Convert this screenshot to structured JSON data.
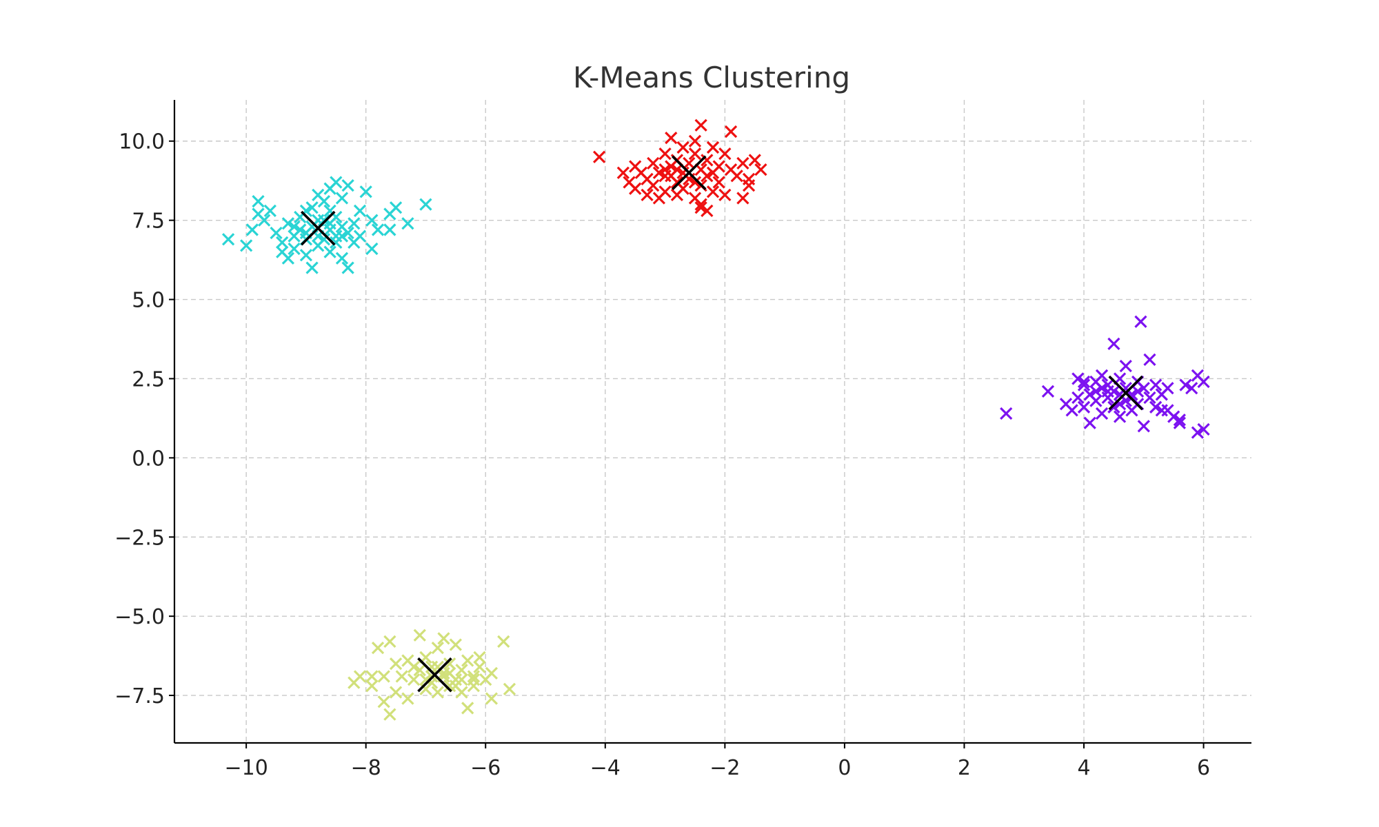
{
  "chart_data": {
    "type": "scatter",
    "title": "K-Means Clustering",
    "xlabel": "",
    "ylabel": "",
    "xlim": [
      -11.2,
      6.8
    ],
    "ylim": [
      -9.0,
      11.3
    ],
    "xticks": [
      -10,
      -8,
      -6,
      -4,
      -2,
      0,
      2,
      4,
      6
    ],
    "xtick_labels": [
      "−10",
      "−8",
      "−6",
      "−4",
      "−2",
      "0",
      "2",
      "4",
      "6"
    ],
    "yticks": [
      -7.5,
      -5.0,
      -2.5,
      0.0,
      2.5,
      5.0,
      7.5,
      10.0
    ],
    "ytick_labels": [
      "−7.5",
      "−5.0",
      "−2.5",
      "0.0",
      "2.5",
      "5.0",
      "7.5",
      "10.0"
    ],
    "grid": true,
    "marker": "x",
    "series": [
      {
        "color": "#2ad4d4",
        "points": [
          [
            -10.3,
            6.9
          ],
          [
            -10.0,
            6.7
          ],
          [
            -9.9,
            7.2
          ],
          [
            -9.8,
            7.7
          ],
          [
            -9.8,
            8.1
          ],
          [
            -9.7,
            7.5
          ],
          [
            -9.6,
            7.8
          ],
          [
            -9.5,
            7.1
          ],
          [
            -9.4,
            6.8
          ],
          [
            -9.4,
            6.5
          ],
          [
            -9.3,
            7.4
          ],
          [
            -9.3,
            6.3
          ],
          [
            -9.2,
            7.0
          ],
          [
            -9.2,
            6.6
          ],
          [
            -9.1,
            7.6
          ],
          [
            -9.1,
            7.2
          ],
          [
            -9.0,
            6.9
          ],
          [
            -9.0,
            7.8
          ],
          [
            -9.0,
            6.4
          ],
          [
            -8.9,
            7.3
          ],
          [
            -8.9,
            6.0
          ],
          [
            -8.9,
            7.9
          ],
          [
            -8.8,
            7.0
          ],
          [
            -8.8,
            8.3
          ],
          [
            -8.8,
            6.7
          ],
          [
            -8.7,
            7.5
          ],
          [
            -8.7,
            6.9
          ],
          [
            -8.7,
            8.1
          ],
          [
            -8.6,
            7.2
          ],
          [
            -8.6,
            6.5
          ],
          [
            -8.6,
            7.8
          ],
          [
            -8.6,
            8.5
          ],
          [
            -8.5,
            7.0
          ],
          [
            -8.5,
            6.8
          ],
          [
            -8.5,
            7.6
          ],
          [
            -8.5,
            8.7
          ],
          [
            -8.4,
            7.3
          ],
          [
            -8.4,
            6.3
          ],
          [
            -8.4,
            8.2
          ],
          [
            -8.3,
            7.1
          ],
          [
            -8.3,
            6.0
          ],
          [
            -8.3,
            8.6
          ],
          [
            -8.2,
            7.4
          ],
          [
            -8.2,
            6.8
          ],
          [
            -8.1,
            7.8
          ],
          [
            -8.1,
            7.0
          ],
          [
            -8.0,
            8.4
          ],
          [
            -7.9,
            7.5
          ],
          [
            -7.9,
            6.6
          ],
          [
            -7.8,
            7.2
          ],
          [
            -7.6,
            7.7
          ],
          [
            -7.5,
            7.9
          ],
          [
            -7.3,
            7.4
          ],
          [
            -7.0,
            8.0
          ],
          [
            -7.6,
            7.2
          ],
          [
            -8.8,
            7.5
          ],
          [
            -9.0,
            7.1
          ],
          [
            -8.6,
            7.4
          ],
          [
            -8.4,
            7.0
          ],
          [
            -9.2,
            7.3
          ]
        ]
      },
      {
        "color": "#ee1111",
        "points": [
          [
            -4.1,
            9.5
          ],
          [
            -3.7,
            9.0
          ],
          [
            -3.6,
            8.7
          ],
          [
            -3.5,
            9.2
          ],
          [
            -3.5,
            8.5
          ],
          [
            -3.4,
            9.0
          ],
          [
            -3.3,
            8.3
          ],
          [
            -3.3,
            8.8
          ],
          [
            -3.2,
            9.3
          ],
          [
            -3.2,
            8.6
          ],
          [
            -3.1,
            9.0
          ],
          [
            -3.1,
            8.2
          ],
          [
            -3.0,
            9.6
          ],
          [
            -3.0,
            8.9
          ],
          [
            -3.0,
            8.4
          ],
          [
            -2.9,
            9.2
          ],
          [
            -2.9,
            10.1
          ],
          [
            -2.8,
            8.7
          ],
          [
            -2.8,
            9.4
          ],
          [
            -2.8,
            8.3
          ],
          [
            -2.7,
            9.0
          ],
          [
            -2.7,
            9.8
          ],
          [
            -2.7,
            8.5
          ],
          [
            -2.6,
            9.3
          ],
          [
            -2.6,
            8.8
          ],
          [
            -2.5,
            10.0
          ],
          [
            -2.5,
            8.2
          ],
          [
            -2.5,
            9.6
          ],
          [
            -2.4,
            8.6
          ],
          [
            -2.4,
            9.1
          ],
          [
            -2.4,
            7.9
          ],
          [
            -2.4,
            10.5
          ],
          [
            -2.3,
            8.9
          ],
          [
            -2.3,
            9.4
          ],
          [
            -2.3,
            7.8
          ],
          [
            -2.2,
            9.8
          ],
          [
            -2.2,
            8.4
          ],
          [
            -2.1,
            9.2
          ],
          [
            -2.1,
            8.7
          ],
          [
            -2.0,
            9.6
          ],
          [
            -2.0,
            8.3
          ],
          [
            -1.9,
            9.1
          ],
          [
            -1.9,
            10.3
          ],
          [
            -1.8,
            8.9
          ],
          [
            -1.7,
            9.3
          ],
          [
            -1.7,
            8.2
          ],
          [
            -1.6,
            8.6
          ],
          [
            -1.6,
            8.8
          ],
          [
            -1.5,
            9.4
          ],
          [
            -1.4,
            9.1
          ],
          [
            -2.6,
            9.0
          ],
          [
            -2.9,
            8.9
          ],
          [
            -2.5,
            8.7
          ],
          [
            -2.8,
            9.1
          ],
          [
            -3.0,
            9.1
          ],
          [
            -2.2,
            9.0
          ],
          [
            -2.4,
            8.0
          ]
        ]
      },
      {
        "color": "#7c12f0",
        "points": [
          [
            2.7,
            1.4
          ],
          [
            3.4,
            2.1
          ],
          [
            3.7,
            1.7
          ],
          [
            3.8,
            1.5
          ],
          [
            3.9,
            2.5
          ],
          [
            3.9,
            1.9
          ],
          [
            4.0,
            2.3
          ],
          [
            4.0,
            1.6
          ],
          [
            4.1,
            2.0
          ],
          [
            4.1,
            1.1
          ],
          [
            4.2,
            2.4
          ],
          [
            4.2,
            1.8
          ],
          [
            4.3,
            2.2
          ],
          [
            4.3,
            1.4
          ],
          [
            4.3,
            2.6
          ],
          [
            4.4,
            1.9
          ],
          [
            4.4,
            2.3
          ],
          [
            4.5,
            1.6
          ],
          [
            4.5,
            2.1
          ],
          [
            4.5,
            3.6
          ],
          [
            4.6,
            1.3
          ],
          [
            4.6,
            2.5
          ],
          [
            4.7,
            1.8
          ],
          [
            4.7,
            2.9
          ],
          [
            4.7,
            2.2
          ],
          [
            4.8,
            1.5
          ],
          [
            4.8,
            2.0
          ],
          [
            4.9,
            2.4
          ],
          [
            4.9,
            1.7
          ],
          [
            4.95,
            4.3
          ],
          [
            5.0,
            2.2
          ],
          [
            5.0,
            1.0
          ],
          [
            5.1,
            1.9
          ],
          [
            5.1,
            3.1
          ],
          [
            5.2,
            2.3
          ],
          [
            5.2,
            1.6
          ],
          [
            5.3,
            2.0
          ],
          [
            5.3,
            1.5
          ],
          [
            5.4,
            2.2
          ],
          [
            5.5,
            1.3
          ],
          [
            5.6,
            1.1
          ],
          [
            5.7,
            2.3
          ],
          [
            5.8,
            2.2
          ],
          [
            5.9,
            2.6
          ],
          [
            5.9,
            0.8
          ],
          [
            6.0,
            0.9
          ],
          [
            6.0,
            2.4
          ],
          [
            5.6,
            1.2
          ],
          [
            4.6,
            2.0
          ],
          [
            4.4,
            2.1
          ],
          [
            4.8,
            1.9
          ],
          [
            4.2,
            2.1
          ],
          [
            4.6,
            1.7
          ],
          [
            4.9,
            2.1
          ],
          [
            5.4,
            1.5
          ],
          [
            4.0,
            2.4
          ]
        ]
      },
      {
        "color": "#d1e07a",
        "points": [
          [
            -8.2,
            -7.1
          ],
          [
            -8.1,
            -6.9
          ],
          [
            -7.9,
            -6.9
          ],
          [
            -7.9,
            -7.2
          ],
          [
            -7.8,
            -6.0
          ],
          [
            -7.7,
            -7.7
          ],
          [
            -7.6,
            -5.8
          ],
          [
            -7.6,
            -8.1
          ],
          [
            -7.5,
            -6.5
          ],
          [
            -7.5,
            -7.4
          ],
          [
            -7.4,
            -6.9
          ],
          [
            -7.3,
            -6.4
          ],
          [
            -7.3,
            -7.6
          ],
          [
            -7.2,
            -7.0
          ],
          [
            -7.1,
            -5.6
          ],
          [
            -7.1,
            -6.7
          ],
          [
            -7.0,
            -7.3
          ],
          [
            -7.0,
            -6.3
          ],
          [
            -6.9,
            -7.1
          ],
          [
            -6.9,
            -6.6
          ],
          [
            -6.8,
            -7.4
          ],
          [
            -6.8,
            -6.0
          ],
          [
            -6.7,
            -6.8
          ],
          [
            -6.7,
            -5.7
          ],
          [
            -6.6,
            -7.2
          ],
          [
            -6.6,
            -6.5
          ],
          [
            -6.5,
            -7.0
          ],
          [
            -6.5,
            -5.9
          ],
          [
            -6.4,
            -6.7
          ],
          [
            -6.4,
            -7.4
          ],
          [
            -6.3,
            -6.4
          ],
          [
            -6.3,
            -7.9
          ],
          [
            -6.2,
            -6.9
          ],
          [
            -6.2,
            -7.2
          ],
          [
            -6.1,
            -6.6
          ],
          [
            -6.1,
            -6.3
          ],
          [
            -6.0,
            -7.0
          ],
          [
            -5.9,
            -6.8
          ],
          [
            -5.9,
            -7.6
          ],
          [
            -5.7,
            -5.8
          ],
          [
            -5.6,
            -7.3
          ],
          [
            -6.7,
            -6.9
          ],
          [
            -6.9,
            -6.9
          ],
          [
            -7.2,
            -6.6
          ],
          [
            -6.5,
            -7.2
          ],
          [
            -7.7,
            -6.9
          ],
          [
            -6.8,
            -6.6
          ],
          [
            -6.4,
            -7.0
          ],
          [
            -7.0,
            -7.0
          ],
          [
            -6.2,
            -7.0
          ],
          [
            -6.6,
            -6.8
          ]
        ]
      }
    ],
    "centroids": [
      [
        -8.8,
        7.25
      ],
      [
        -2.6,
        9.0
      ],
      [
        4.7,
        2.05
      ],
      [
        -6.85,
        -6.85
      ]
    ],
    "centroid_color": "#000000"
  }
}
